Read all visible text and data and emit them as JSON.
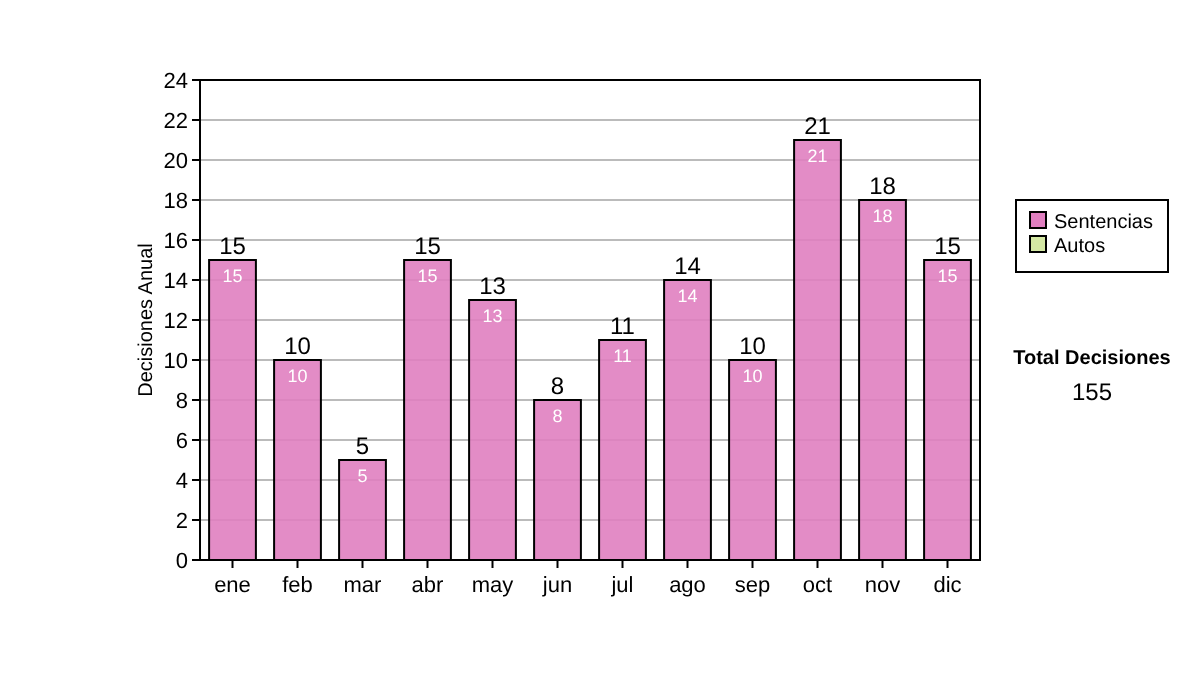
{
  "chart_data": {
    "type": "bar",
    "stacked": true,
    "ylabel": "Decisiones Anual",
    "categories": [
      "ene",
      "feb",
      "mar",
      "abr",
      "may",
      "jun",
      "jul",
      "ago",
      "sep",
      "oct",
      "nov",
      "dic"
    ],
    "series": [
      {
        "name": "Sentencias",
        "color": "#e07fc0",
        "values": [
          15,
          10,
          5,
          15,
          13,
          8,
          11,
          14,
          10,
          21,
          18,
          15
        ],
        "value_labels": [
          "15",
          "10",
          "5",
          "15",
          "13",
          "8",
          "11",
          "14",
          "10",
          "21",
          "18",
          "15"
        ]
      },
      {
        "name": "Autos",
        "color": "#d4e8a4",
        "values": [
          0,
          0,
          0,
          0,
          0,
          0,
          0,
          0,
          0,
          0,
          0,
          0
        ]
      }
    ],
    "totals": [
      "15",
      "10",
      "5",
      "15",
      "13",
      "8",
      "11",
      "14",
      "10",
      "21",
      "18",
      "15"
    ],
    "ylim": [
      0,
      24
    ],
    "yticks": [
      0,
      2,
      4,
      6,
      8,
      10,
      12,
      14,
      16,
      18,
      20,
      22,
      24
    ],
    "grid": "y",
    "legend": "right",
    "annotations": [
      "Total Decisiones",
      "155"
    ]
  }
}
